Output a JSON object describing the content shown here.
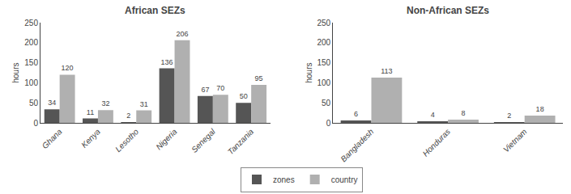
{
  "chart_data": [
    {
      "type": "bar",
      "title": "African SEZs",
      "categories": [
        "Ghana",
        "Kenya",
        "Lesotho",
        "Nigeria",
        "Senegal",
        "Tanzania"
      ],
      "series": [
        {
          "name": "zones",
          "color": "#555555",
          "values": [
            34,
            11,
            2,
            136,
            67,
            50
          ]
        },
        {
          "name": "country",
          "color": "#b0b0b0",
          "values": [
            120,
            32,
            31,
            206,
            70,
            95
          ]
        }
      ],
      "ylabel": "hours",
      "ylim": [
        0,
        250
      ],
      "yticks": [
        0,
        50,
        100,
        150,
        200,
        250
      ],
      "grid": false,
      "data_labels": true,
      "legend": "bottom"
    },
    {
      "type": "bar",
      "title": "Non-African SEZs",
      "categories": [
        "Bangladesh",
        "Honduras",
        "Vietnam"
      ],
      "series": [
        {
          "name": "zones",
          "color": "#555555",
          "values": [
            6,
            4,
            2
          ]
        },
        {
          "name": "country",
          "color": "#b0b0b0",
          "values": [
            113,
            8,
            18
          ]
        }
      ],
      "ylabel": "hours",
      "ylim": [
        0,
        250
      ],
      "yticks": [
        0,
        50,
        100,
        150,
        200,
        250
      ],
      "grid": false,
      "data_labels": true,
      "legend": "bottom"
    }
  ]
}
